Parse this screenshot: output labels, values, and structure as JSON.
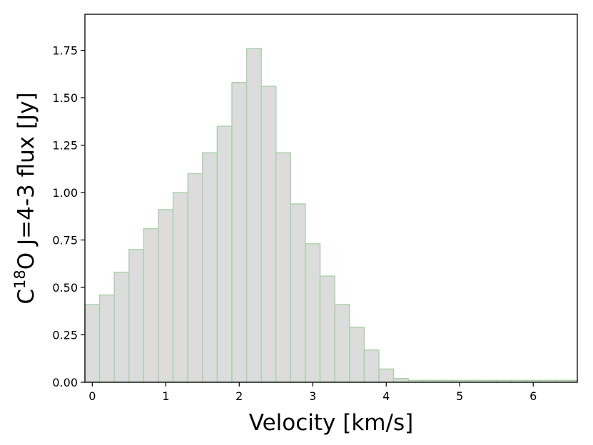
{
  "chart_data": {
    "type": "bar",
    "bin_width": 0.2,
    "bins": [
      {
        "x": 0.0,
        "y": 0.41
      },
      {
        "x": 0.2,
        "y": 0.46
      },
      {
        "x": 0.4,
        "y": 0.58
      },
      {
        "x": 0.6,
        "y": 0.7
      },
      {
        "x": 0.8,
        "y": 0.81
      },
      {
        "x": 1.0,
        "y": 0.91
      },
      {
        "x": 1.2,
        "y": 1.0
      },
      {
        "x": 1.4,
        "y": 1.1
      },
      {
        "x": 1.6,
        "y": 1.21
      },
      {
        "x": 1.8,
        "y": 1.35
      },
      {
        "x": 2.0,
        "y": 1.58
      },
      {
        "x": 2.2,
        "y": 1.76
      },
      {
        "x": 2.4,
        "y": 1.56
      },
      {
        "x": 2.6,
        "y": 1.21
      },
      {
        "x": 2.8,
        "y": 0.94
      },
      {
        "x": 3.0,
        "y": 0.73
      },
      {
        "x": 3.2,
        "y": 0.56
      },
      {
        "x": 3.4,
        "y": 0.41
      },
      {
        "x": 3.6,
        "y": 0.29
      },
      {
        "x": 3.8,
        "y": 0.17
      },
      {
        "x": 4.0,
        "y": 0.07
      },
      {
        "x": 4.2,
        "y": 0.02
      },
      {
        "x": 4.4,
        "y": 0.01
      },
      {
        "x": 4.6,
        "y": 0.01
      },
      {
        "x": 4.8,
        "y": 0.01
      },
      {
        "x": 5.0,
        "y": 0.01
      },
      {
        "x": 5.2,
        "y": 0.01
      },
      {
        "x": 5.4,
        "y": 0.01
      },
      {
        "x": 5.6,
        "y": 0.01
      },
      {
        "x": 5.8,
        "y": 0.01
      },
      {
        "x": 6.0,
        "y": 0.01
      },
      {
        "x": 6.2,
        "y": 0.01
      },
      {
        "x": 6.4,
        "y": 0.01
      },
      {
        "x": 6.6,
        "y": 0.01
      }
    ],
    "xlabel": "Velocity [km/s]",
    "ylabel": {
      "prefix": "C",
      "superscript": "18",
      "suffix": "O J=4-3 flux [Jy]"
    },
    "xlim": [
      -0.1,
      6.6
    ],
    "ylim": [
      0,
      1.94
    ],
    "xticks": [
      {
        "value": 0,
        "label": "0"
      },
      {
        "value": 1,
        "label": "1"
      },
      {
        "value": 2,
        "label": "2"
      },
      {
        "value": 3,
        "label": "3"
      },
      {
        "value": 4,
        "label": "4"
      },
      {
        "value": 5,
        "label": "5"
      },
      {
        "value": 6,
        "label": "6"
      }
    ],
    "yticks": [
      {
        "value": 0.0,
        "label": "0.00"
      },
      {
        "value": 0.25,
        "label": "0.25"
      },
      {
        "value": 0.5,
        "label": "0.50"
      },
      {
        "value": 0.75,
        "label": "0.75"
      },
      {
        "value": 1.0,
        "label": "1.00"
      },
      {
        "value": 1.25,
        "label": "1.25"
      },
      {
        "value": 1.5,
        "label": "1.50"
      },
      {
        "value": 1.75,
        "label": "1.75"
      }
    ],
    "grid": false,
    "legend": "none",
    "colors": {
      "bar_fill": "#dcdcdc",
      "bar_edge": "#a9d1a9",
      "axis": "#000000"
    }
  }
}
